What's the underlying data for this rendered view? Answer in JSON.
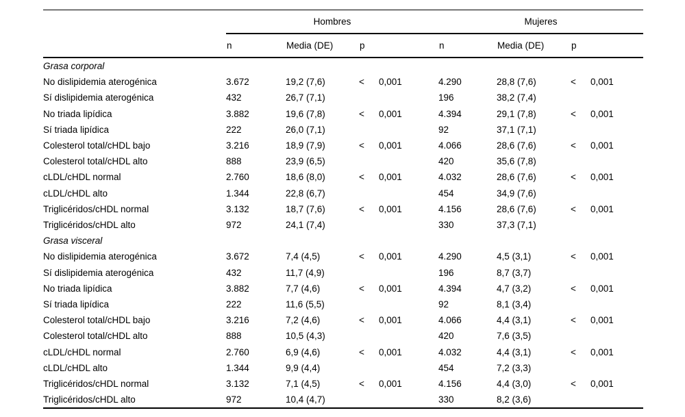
{
  "colors": {
    "background": "#ffffff",
    "text": "#000000",
    "rule": "#000000"
  },
  "table": {
    "group_headers": [
      "Hombres",
      "Mujeres"
    ],
    "column_headers": {
      "n": "n",
      "media": "Media (DE)",
      "p": "p"
    },
    "sections": [
      {
        "title": "Grasa corporal",
        "rows": [
          {
            "label": "No dislipidemia aterogénica",
            "h_n": "3.672",
            "h_media": "19,2 (7,6)",
            "h_p_sign": "<",
            "h_p_value": "0,001",
            "m_n": "4.290",
            "m_media": "28,8 (7,6)",
            "m_p_sign": "<",
            "m_p_value": "0,001"
          },
          {
            "label": "Sí dislipidemia aterogénica",
            "h_n": "432",
            "h_media": "26,7 (7,1)",
            "h_p_sign": "",
            "h_p_value": "",
            "m_n": "196",
            "m_media": "38,2 (7,4)",
            "m_p_sign": "",
            "m_p_value": ""
          },
          {
            "label": "No triada lipídica",
            "h_n": "3.882",
            "h_media": "19,6 (7,8)",
            "h_p_sign": "<",
            "h_p_value": "0,001",
            "m_n": "4.394",
            "m_media": "29,1 (7,8)",
            "m_p_sign": "<",
            "m_p_value": "0,001"
          },
          {
            "label": "Sí triada lipídica",
            "h_n": "222",
            "h_media": "26,0 (7,1)",
            "h_p_sign": "",
            "h_p_value": "",
            "m_n": "92",
            "m_media": "37,1 (7,1)",
            "m_p_sign": "",
            "m_p_value": ""
          },
          {
            "label": "Colesterol total/cHDL bajo",
            "h_n": "3.216",
            "h_media": "18,9 (7,9)",
            "h_p_sign": "<",
            "h_p_value": "0,001",
            "m_n": "4.066",
            "m_media": "28,6 (7,6)",
            "m_p_sign": "<",
            "m_p_value": "0,001"
          },
          {
            "label": "Colesterol total/cHDL alto",
            "h_n": "888",
            "h_media": "23,9 (6,5)",
            "h_p_sign": "",
            "h_p_value": "",
            "m_n": "420",
            "m_media": "35,6 (7,8)",
            "m_p_sign": "",
            "m_p_value": ""
          },
          {
            "label": "cLDL/cHDL normal",
            "h_n": "2.760",
            "h_media": "18,6 (8,0)",
            "h_p_sign": "<",
            "h_p_value": "0,001",
            "m_n": "4.032",
            "m_media": "28,6 (7,6)",
            "m_p_sign": "<",
            "m_p_value": "0,001"
          },
          {
            "label": "cLDL/cHDL alto",
            "h_n": "1.344",
            "h_media": "22,8 (6,7)",
            "h_p_sign": "",
            "h_p_value": "",
            "m_n": "454",
            "m_media": "34,9 (7,6)",
            "m_p_sign": "",
            "m_p_value": ""
          },
          {
            "label": "Triglicéridos/cHDL normal",
            "h_n": "3.132",
            "h_media": "18,7 (7,6)",
            "h_p_sign": "<",
            "h_p_value": "0,001",
            "m_n": "4.156",
            "m_media": "28,6 (7,6)",
            "m_p_sign": "<",
            "m_p_value": "0,001"
          },
          {
            "label": "Triglicéridos/cHDL alto",
            "h_n": "972",
            "h_media": "24,1 (7,4)",
            "h_p_sign": "",
            "h_p_value": "",
            "m_n": "330",
            "m_media": "37,3 (7,1)",
            "m_p_sign": "",
            "m_p_value": ""
          }
        ]
      },
      {
        "title": "Grasa visceral",
        "rows": [
          {
            "label": "No dislipidemia aterogénica",
            "h_n": "3.672",
            "h_media": "7,4 (4,5)",
            "h_p_sign": "<",
            "h_p_value": "0,001",
            "m_n": "4.290",
            "m_media": "4,5 (3,1)",
            "m_p_sign": "<",
            "m_p_value": "0,001"
          },
          {
            "label": "Sí dislipidemia aterogénica",
            "h_n": "432",
            "h_media": "11,7 (4,9)",
            "h_p_sign": "",
            "h_p_value": "",
            "m_n": "196",
            "m_media": "8,7 (3,7)",
            "m_p_sign": "",
            "m_p_value": ""
          },
          {
            "label": "No triada lipídica",
            "h_n": "3.882",
            "h_media": "7,7 (4,6)",
            "h_p_sign": "<",
            "h_p_value": "0,001",
            "m_n": "4.394",
            "m_media": "4,7 (3,2)",
            "m_p_sign": "<",
            "m_p_value": "0,001"
          },
          {
            "label": "Sí triada lipídica",
            "h_n": "222",
            "h_media": "11,6 (5,5)",
            "h_p_sign": "",
            "h_p_value": "",
            "m_n": "92",
            "m_media": "8,1 (3,4)",
            "m_p_sign": "",
            "m_p_value": ""
          },
          {
            "label": "Colesterol total/cHDL bajo",
            "h_n": "3.216",
            "h_media": "7,2 (4,6)",
            "h_p_sign": "<",
            "h_p_value": "0,001",
            "m_n": "4.066",
            "m_media": "4,4 (3,1)",
            "m_p_sign": "<",
            "m_p_value": "0,001"
          },
          {
            "label": "Colesterol total/cHDL alto",
            "h_n": "888",
            "h_media": "10,5 (4,3)",
            "h_p_sign": "",
            "h_p_value": "",
            "m_n": "420",
            "m_media": "7,6 (3,5)",
            "m_p_sign": "",
            "m_p_value": ""
          },
          {
            "label": "cLDL/cHDL normal",
            "h_n": "2.760",
            "h_media": "6,9 (4,6)",
            "h_p_sign": "<",
            "h_p_value": "0,001",
            "m_n": "4.032",
            "m_media": "4,4 (3,1)",
            "m_p_sign": "<",
            "m_p_value": "0,001"
          },
          {
            "label": "cLDL/cHDL alto",
            "h_n": "1.344",
            "h_media": "9,9 (4,4)",
            "h_p_sign": "",
            "h_p_value": "",
            "m_n": "454",
            "m_media": "7,2 (3,3)",
            "m_p_sign": "",
            "m_p_value": ""
          },
          {
            "label": "Triglicéridos/cHDL normal",
            "h_n": "3.132",
            "h_media": "7,1 (4,5)",
            "h_p_sign": "<",
            "h_p_value": "0,001",
            "m_n": "4.156",
            "m_media": "4,4 (3,0)",
            "m_p_sign": "<",
            "m_p_value": "0,001"
          },
          {
            "label": "Triglicéridos/cHDL alto",
            "h_n": "972",
            "h_media": "10,4 (4,7)",
            "h_p_sign": "",
            "h_p_value": "",
            "m_n": "330",
            "m_media": "8,2 (3,6)",
            "m_p_sign": "",
            "m_p_value": ""
          }
        ]
      }
    ]
  }
}
